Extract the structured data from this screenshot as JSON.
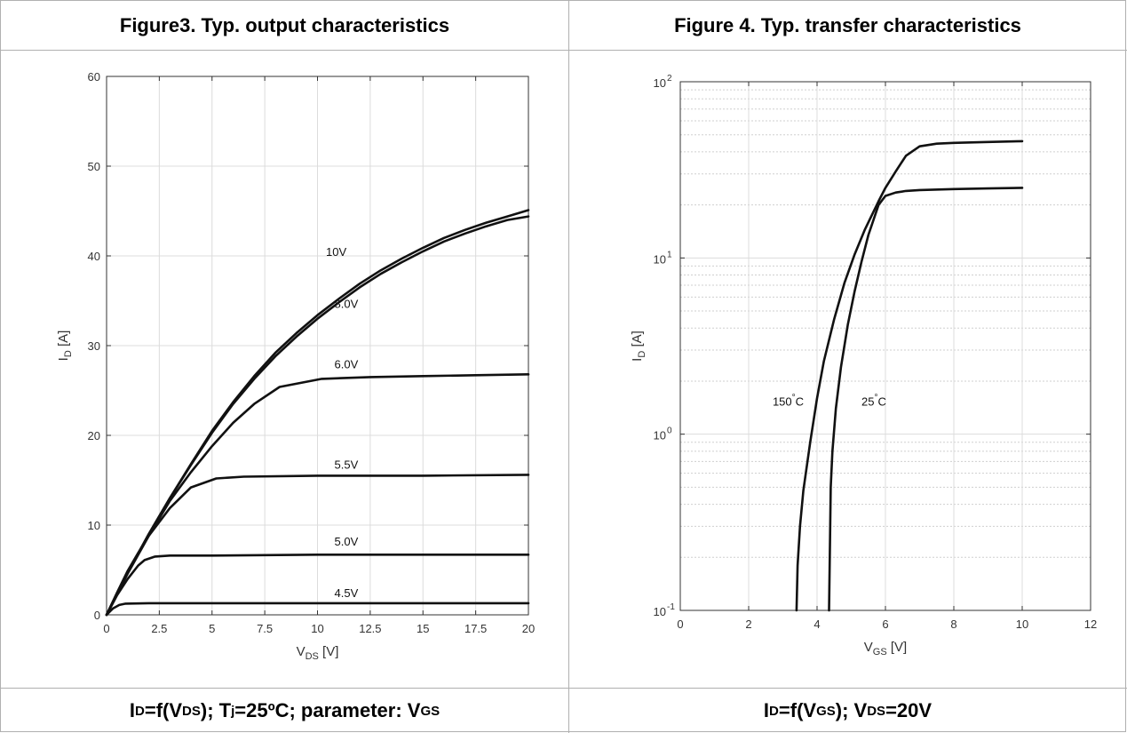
{
  "left_panel": {
    "title": "Figure3. Typ. output characteristics",
    "caption_parts": [
      {
        "t": "I"
      },
      {
        "t": "D",
        "sub": true
      },
      {
        "t": "=f(V"
      },
      {
        "t": "DS",
        "sub": true
      },
      {
        "t": "); T"
      },
      {
        "t": "j",
        "sub": true
      },
      {
        "t": "=25ºC; parameter: V"
      },
      {
        "t": "GS",
        "sub": true
      }
    ]
  },
  "right_panel": {
    "title": "Figure 4. Typ. transfer characteristics",
    "caption_parts": [
      {
        "t": "I"
      },
      {
        "t": "D",
        "sub": true
      },
      {
        "t": "=f(V"
      },
      {
        "t": "GS",
        "sub": true
      },
      {
        "t": "); V"
      },
      {
        "t": "DS",
        "sub": true
      },
      {
        "t": "=20V"
      }
    ]
  },
  "chart_data": [
    {
      "type": "line",
      "xlabel": "V",
      "xlabel_sub": "DS",
      "xlabel_unit": "[V]",
      "ylabel": "I",
      "ylabel_sub": "D",
      "ylabel_unit": "[A]",
      "xlim": [
        0,
        20
      ],
      "ylim": [
        0,
        60
      ],
      "xticks": [
        0,
        2.5,
        5,
        7.5,
        10,
        12.5,
        15,
        17.5,
        20
      ],
      "xtick_labels": [
        "0",
        "2.5",
        "5",
        "7.5",
        "10",
        "12.5",
        "15",
        "17.5",
        "20"
      ],
      "yticks": [
        0,
        10,
        20,
        30,
        40,
        50,
        60
      ],
      "ytick_labels": [
        "0",
        "10",
        "20",
        "30",
        "40",
        "50",
        "60"
      ],
      "grid": true,
      "line_color": "#111111",
      "series": [
        {
          "name": "10V",
          "label_at": [
            10.4,
            40
          ],
          "x": [
            0,
            1,
            2,
            3,
            4,
            5,
            6,
            7,
            8,
            9,
            10,
            11,
            12,
            13,
            14,
            15,
            16,
            17,
            18,
            19,
            20
          ],
          "y": [
            0,
            4.7,
            9,
            13,
            16.8,
            20.5,
            23.7,
            26.6,
            29.2,
            31.4,
            33.4,
            35.2,
            36.9,
            38.4,
            39.7,
            40.9,
            42,
            42.9,
            43.7,
            44.4,
            45.1
          ]
        },
        {
          "name": "8.0V",
          "label_at": [
            10.8,
            34.2
          ],
          "x": [
            0,
            1,
            2,
            3,
            4,
            5,
            6,
            7,
            8,
            9,
            10,
            11,
            12,
            13,
            14,
            15,
            16,
            17,
            18,
            19,
            20
          ],
          "y": [
            0,
            4.7,
            9,
            13,
            16.7,
            20.3,
            23.5,
            26.3,
            28.8,
            31,
            33,
            34.8,
            36.5,
            38,
            39.3,
            40.5,
            41.6,
            42.5,
            43.3,
            44,
            44.4
          ]
        },
        {
          "name": "6.0V",
          "label_at": [
            10.8,
            27.5
          ],
          "x": [
            0,
            1,
            2,
            3,
            4,
            5,
            6,
            7,
            8.2,
            10.2,
            12.5,
            15,
            17.5,
            20
          ],
          "y": [
            0,
            4.6,
            8.8,
            12.7,
            15.9,
            18.8,
            21.4,
            23.5,
            25.4,
            26.3,
            26.5,
            26.6,
            26.7,
            26.8
          ]
        },
        {
          "name": "5.5V",
          "label_at": [
            10.8,
            16.3
          ],
          "x": [
            0,
            0.5,
            1,
            1.5,
            2,
            3,
            4,
            5.2,
            6.5,
            10,
            15,
            20
          ],
          "y": [
            0,
            2.5,
            4.9,
            6.9,
            8.8,
            11.9,
            14.2,
            15.2,
            15.4,
            15.5,
            15.5,
            15.6
          ]
        },
        {
          "name": "5.0V",
          "label_at": [
            10.8,
            7.7
          ],
          "x": [
            0,
            0.5,
            1,
            1.5,
            1.8,
            2.3,
            3,
            5,
            10,
            15,
            20
          ],
          "y": [
            0,
            2.2,
            4,
            5.5,
            6.1,
            6.5,
            6.6,
            6.6,
            6.7,
            6.7,
            6.7
          ]
        },
        {
          "name": "4.5V",
          "label_at": [
            10.8,
            2.0
          ],
          "x": [
            0,
            0.3,
            0.6,
            0.9,
            2,
            5,
            10,
            15,
            20
          ],
          "y": [
            0,
            0.7,
            1.1,
            1.25,
            1.3,
            1.3,
            1.3,
            1.3,
            1.3
          ]
        }
      ]
    },
    {
      "type": "line",
      "xlabel": "V",
      "xlabel_sub": "GS",
      "xlabel_unit": "[V]",
      "ylabel": "I",
      "ylabel_sub": "D",
      "ylabel_unit": "[A]",
      "yscale": "log",
      "xlim": [
        0,
        12
      ],
      "ylim": [
        0.1,
        100
      ],
      "xticks": [
        0,
        2,
        4,
        6,
        8,
        10,
        12
      ],
      "xtick_labels": [
        "0",
        "2",
        "4",
        "6",
        "8",
        "10",
        "12"
      ],
      "yticks": [
        0.1,
        1,
        10,
        100
      ],
      "ytick_labels": [
        {
          "base": "10",
          "exp": "-1"
        },
        {
          "base": "10",
          "exp": "0"
        },
        {
          "base": "10",
          "exp": "1"
        },
        {
          "base": "10",
          "exp": "2"
        }
      ],
      "grid": true,
      "line_color": "#111111",
      "series": [
        {
          "name": "150°C",
          "label_parts": [
            "150",
            "°",
            "C"
          ],
          "label_at": [
            2.7,
            1.45
          ],
          "x": [
            3.4,
            3.43,
            3.5,
            3.6,
            3.8,
            4,
            4.2,
            4.5,
            4.8,
            5.1,
            5.4,
            5.8,
            6,
            6.3,
            6.6,
            7,
            7.5,
            8,
            9,
            10
          ],
          "y": [
            0.1,
            0.18,
            0.3,
            0.48,
            0.9,
            1.6,
            2.6,
            4.5,
            7.2,
            10.5,
            14.5,
            21,
            25,
            31,
            38,
            43,
            44.5,
            45,
            45.5,
            46
          ]
        },
        {
          "name": "25°C",
          "label_parts": [
            "25",
            "°",
            "C"
          ],
          "label_at": [
            5.3,
            1.45
          ],
          "x": [
            4.35,
            4.38,
            4.4,
            4.45,
            4.55,
            4.7,
            4.9,
            5.1,
            5.3,
            5.5,
            5.8,
            6,
            6.3,
            6.6,
            7,
            8,
            9,
            10
          ],
          "y": [
            0.1,
            0.25,
            0.5,
            0.8,
            1.4,
            2.4,
            4.2,
            6.5,
            9.5,
            13.5,
            20,
            22.5,
            23.5,
            24,
            24.3,
            24.6,
            24.8,
            25
          ]
        }
      ]
    }
  ]
}
